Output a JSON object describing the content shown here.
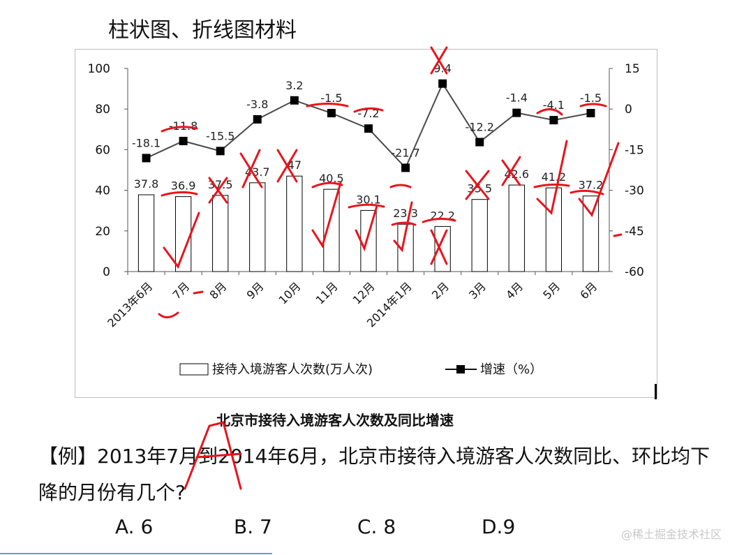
{
  "heading": "柱状图、折线图材料",
  "caption": "北京市接待入境游客人次数及同比增速",
  "question": "【例】2013年7月到2014年6月，北京市接待入境游客人次数同比、环比均下降的月份有几个?",
  "options": [
    "A. 6",
    "B. 7",
    "C. 8",
    "D.9"
  ],
  "watermark": "@稀土掘金技术社区",
  "colors": {
    "bar_fill": "#ffffff",
    "bar_stroke": "#000000",
    "line": "#4a4a4a",
    "marker": "#000000",
    "annotation": "#e8141c"
  },
  "chart_data": {
    "type": "bar",
    "categories": [
      "2013年6月",
      "7月",
      "8月",
      "9月",
      "10月",
      "11月",
      "12月",
      "2014年1月",
      "2月",
      "3月",
      "4月",
      "5月",
      "6月"
    ],
    "series": [
      {
        "name": "接待入境游客人次数(万人次)",
        "type": "bar",
        "axis": "left",
        "values": [
          37.8,
          36.9,
          37.5,
          43.7,
          47,
          40.5,
          30.1,
          23.3,
          22.2,
          35.5,
          42.6,
          41.2,
          37.2
        ],
        "labels": [
          "37.8",
          "36.9",
          "37.5",
          "43.7",
          "47",
          "40.5",
          "30.1",
          "23.3",
          "22.2",
          "35.5",
          "42.6",
          "41.2",
          "37.2"
        ]
      },
      {
        "name": "增速（%）",
        "type": "line",
        "axis": "right",
        "values": [
          -18.1,
          -11.8,
          -15.5,
          -3.8,
          3.2,
          -1.5,
          -7.2,
          -21.7,
          9.4,
          -12.2,
          -1.4,
          -4.1,
          -1.5
        ],
        "labels": [
          "-18.1",
          "-11.8",
          "-15.5",
          "-3.8",
          "3.2",
          "-1.5",
          "-7.2",
          "-21.7",
          "9.4",
          "-12.2",
          "-1.4",
          "-4.1",
          "-1.5"
        ]
      }
    ],
    "y_left": {
      "range": [
        0,
        100
      ],
      "ticks": [
        "0",
        "20",
        "40",
        "60",
        "80",
        "100"
      ]
    },
    "y_right": {
      "range": [
        -60,
        15
      ],
      "ticks": [
        "-60",
        "-45",
        "-30",
        "-15",
        "0",
        "15"
      ]
    },
    "legend": {
      "bar": "接待入境游客人次数(万人次)",
      "line": "增速（%）",
      "position": "bottom"
    },
    "grid": false
  }
}
